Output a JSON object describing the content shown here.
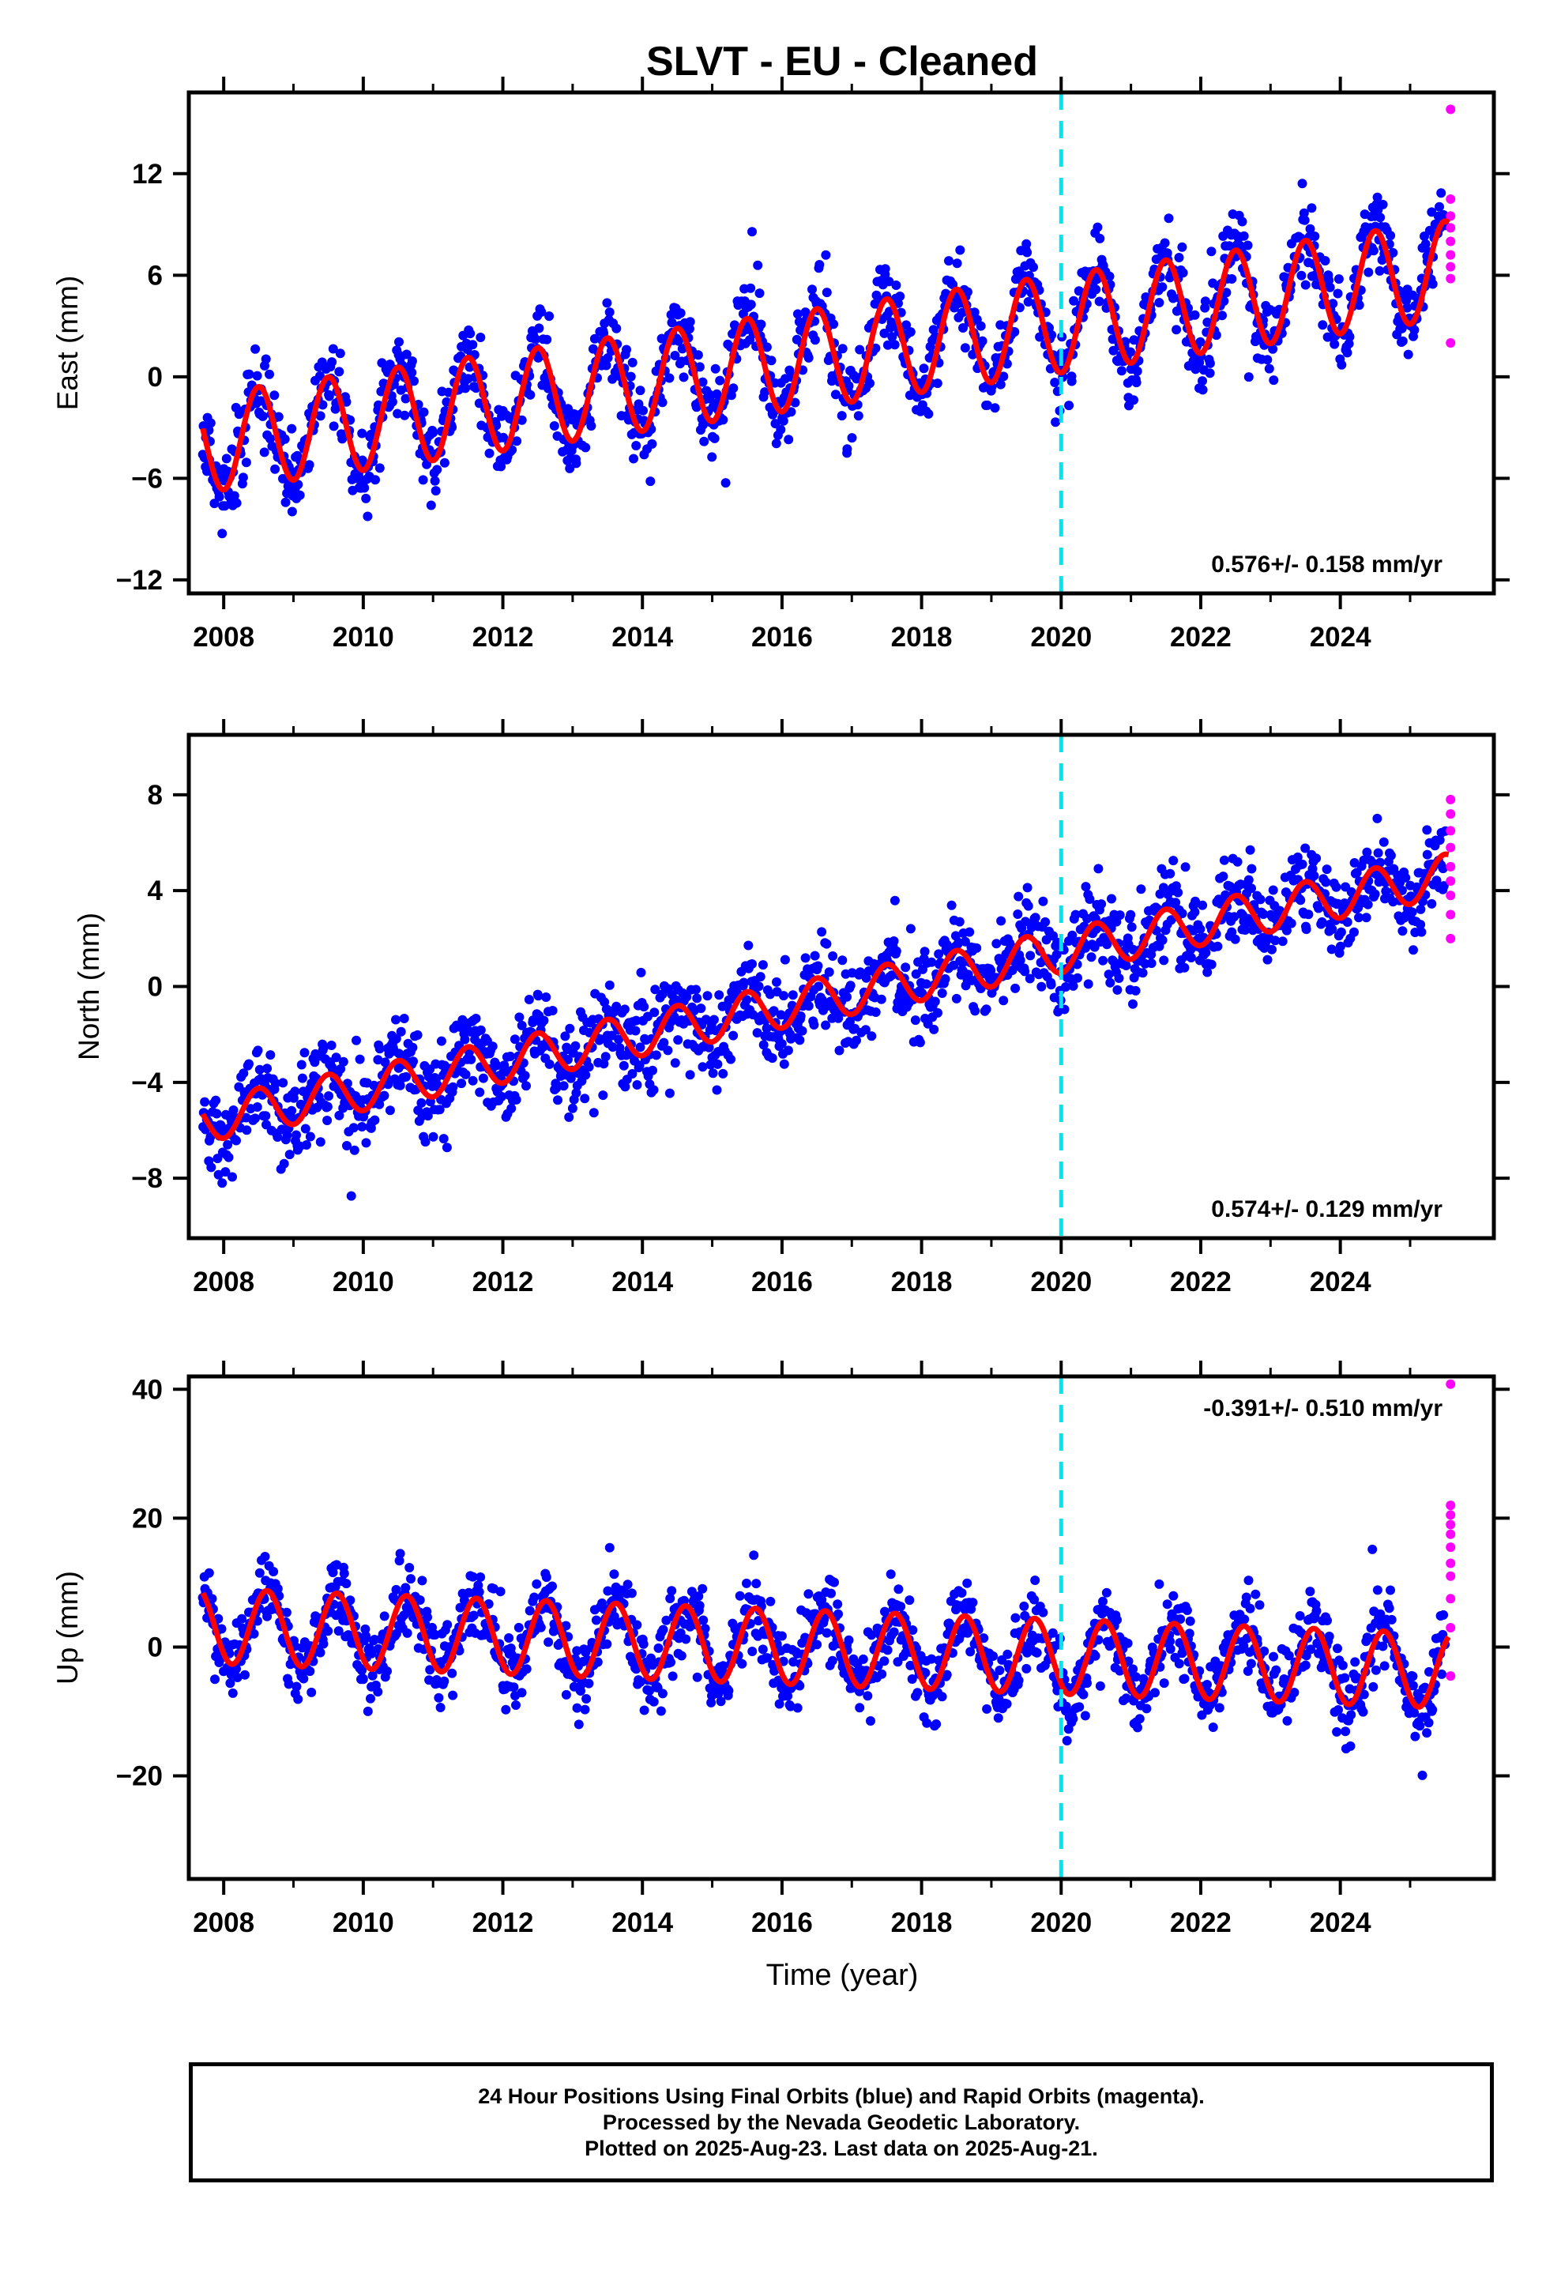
{
  "chart_data": {
    "title": "SLVT  - EU - Cleaned",
    "xlabel": "Time (year)",
    "x_ticks": [
      "2008",
      "2010",
      "2012",
      "2014",
      "2016",
      "2018",
      "2020",
      "2022",
      "2024"
    ],
    "xlim": [
      2007.5,
      2026.2
    ],
    "event_line_x": 2020.0,
    "colors": {
      "final_orbits": "#0000ff",
      "rapid_orbits": "#ff00ff",
      "model": "#ff0000",
      "event": "#00e5ee"
    },
    "panels": [
      {
        "type": "scatter",
        "ylabel": "East (mm)",
        "ylim": [
          -12.8,
          16.8
        ],
        "y_ticks": [
          -12,
          -6,
          0,
          6,
          12
        ],
        "rate_label": "0.576+/- 0.158 mm/yr",
        "model": {
          "start_x": 2007.7,
          "end_x": 2025.55,
          "offset": -3.95,
          "rate": 0.576,
          "amplitude": 2.9,
          "phase_peak": 0.5
        },
        "final_orbits_x_range": [
          2007.7,
          2025.5
        ],
        "scatter_noise_mm": 1.7,
        "rapid_orbits": {
          "x": 2025.58,
          "y": [
            15.8,
            10.5,
            9.5,
            8.8,
            8.0,
            7.2,
            6.5,
            5.8,
            2.0
          ]
        }
      },
      {
        "type": "scatter",
        "ylabel": "North (mm)",
        "ylim": [
          -10.5,
          10.5
        ],
        "y_ticks": [
          -8,
          -4,
          0,
          4,
          8
        ],
        "rate_label": "0.574+/- 0.129 mm/yr",
        "model": {
          "start_x": 2007.7,
          "end_x": 2025.55,
          "offset": -5.6,
          "rate": 0.574,
          "amplitude": 0.9,
          "phase_peak": 0.5
        },
        "final_orbits_x_range": [
          2007.7,
          2025.5
        ],
        "scatter_noise_mm": 1.3,
        "rapid_orbits": {
          "x": 2025.58,
          "y": [
            7.8,
            7.2,
            6.5,
            5.8,
            5.0,
            4.4,
            3.8,
            3.0,
            2.0
          ]
        }
      },
      {
        "type": "scatter",
        "ylabel": "Up (mm)",
        "ylim": [
          -36,
          42
        ],
        "y_ticks": [
          -20,
          0,
          20,
          40
        ],
        "rate_label": "-0.391+/- 0.510 mm/yr",
        "model": {
          "start_x": 2007.7,
          "end_x": 2025.55,
          "offset": 3.3,
          "rate": -0.391,
          "amplitude": 5.8,
          "phase_peak": 0.62
        },
        "final_orbits_x_range": [
          2007.7,
          2025.5
        ],
        "scatter_noise_mm": 4.2,
        "rapid_orbits": {
          "x": 2025.58,
          "y": [
            40.8,
            22.0,
            20.5,
            19.0,
            17.5,
            15.5,
            13.0,
            11.0,
            7.5,
            3.0,
            -4.5
          ]
        }
      }
    ]
  },
  "footer": {
    "line1": "24 Hour Positions Using Final Orbits (blue) and Rapid Orbits (magenta).",
    "line2": "Processed by the Nevada Geodetic Laboratory.",
    "line3": "Plotted on 2025-Aug-23. Last data on 2025-Aug-21."
  }
}
